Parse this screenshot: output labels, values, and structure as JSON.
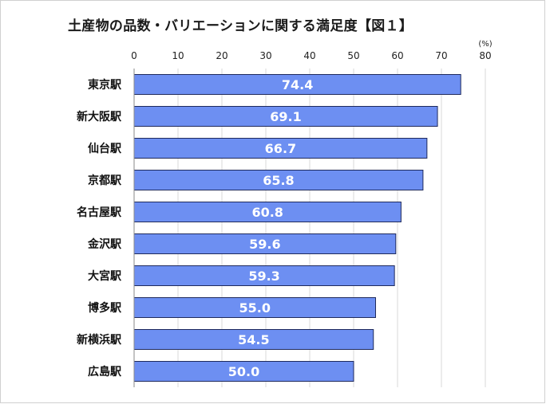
{
  "title": "土産物の品数・バリエーションに関する満足度【図１】",
  "chart_data": {
    "type": "bar",
    "orientation": "horizontal",
    "title": "土産物の品数・バリエーションに関する満足度【図１】",
    "unit": "(%)",
    "categories": [
      "東京駅",
      "新大阪駅",
      "仙台駅",
      "京都駅",
      "名古屋駅",
      "金沢駅",
      "大宮駅",
      "博多駅",
      "新横浜駅",
      "広島駅"
    ],
    "values": [
      74.4,
      69.1,
      66.7,
      65.8,
      60.8,
      59.6,
      59.3,
      55.0,
      54.5,
      50.0
    ],
    "value_labels": [
      "74.4",
      "69.1",
      "66.7",
      "65.8",
      "60.8",
      "59.6",
      "59.3",
      "55.0",
      "54.5",
      "50.0"
    ],
    "xlim": [
      0,
      80
    ],
    "xticks": [
      0,
      10,
      20,
      30,
      40,
      50,
      60,
      70,
      80
    ],
    "xtick_labels": [
      "0",
      "10",
      "20",
      "30",
      "40",
      "50",
      "60",
      "70",
      "80"
    ],
    "xaxis_position": "top",
    "grid": true,
    "legend": false,
    "bar_color": "#6d8ff2",
    "bar_border_color": "#1f2a5c",
    "grid_color": "#d9d9d9"
  }
}
